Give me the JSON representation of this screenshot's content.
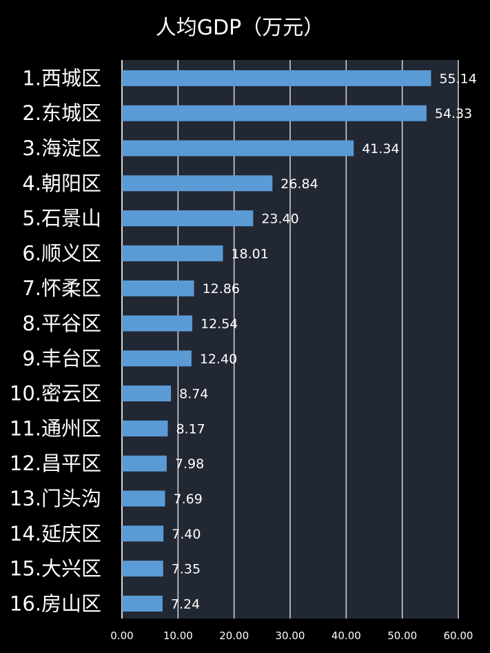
{
  "chart_data": {
    "type": "bar",
    "orientation": "horizontal",
    "title": "人均GDP（万元）",
    "categories": [
      "1.西城区",
      "2.东城区",
      "3.海淀区",
      "4.朝阳区",
      "5.石景山",
      "6.顺义区",
      "7.怀柔区",
      "8.平谷区",
      "9.丰台区",
      "10.密云区",
      "11.通州区",
      "12.昌平区",
      "13.门头沟",
      "14.延庆区",
      "15.大兴区",
      "16.房山区"
    ],
    "values": [
      55.14,
      54.33,
      41.34,
      26.84,
      23.4,
      18.01,
      12.86,
      12.54,
      12.4,
      8.74,
      8.17,
      7.98,
      7.69,
      7.4,
      7.35,
      7.24
    ],
    "value_labels": [
      "55.14",
      "54.33",
      "41.34",
      "26.84",
      "23.40",
      "18.01",
      "12.86",
      "12.54",
      "12.40",
      "8.74",
      "8.17",
      "7.98",
      "7.69",
      "7.40",
      "7.35",
      "7.24"
    ],
    "xlim": [
      0,
      60
    ],
    "x_ticks": [
      "0.00",
      "10.00",
      "20.00",
      "30.00",
      "40.00",
      "50.00",
      "60.00"
    ],
    "grid": true,
    "colors": {
      "bar": "#5b9bd5",
      "plot_background": "#222833",
      "page_background": "#000000",
      "text": "#ffffff",
      "grid": "#d9d9d9"
    }
  }
}
